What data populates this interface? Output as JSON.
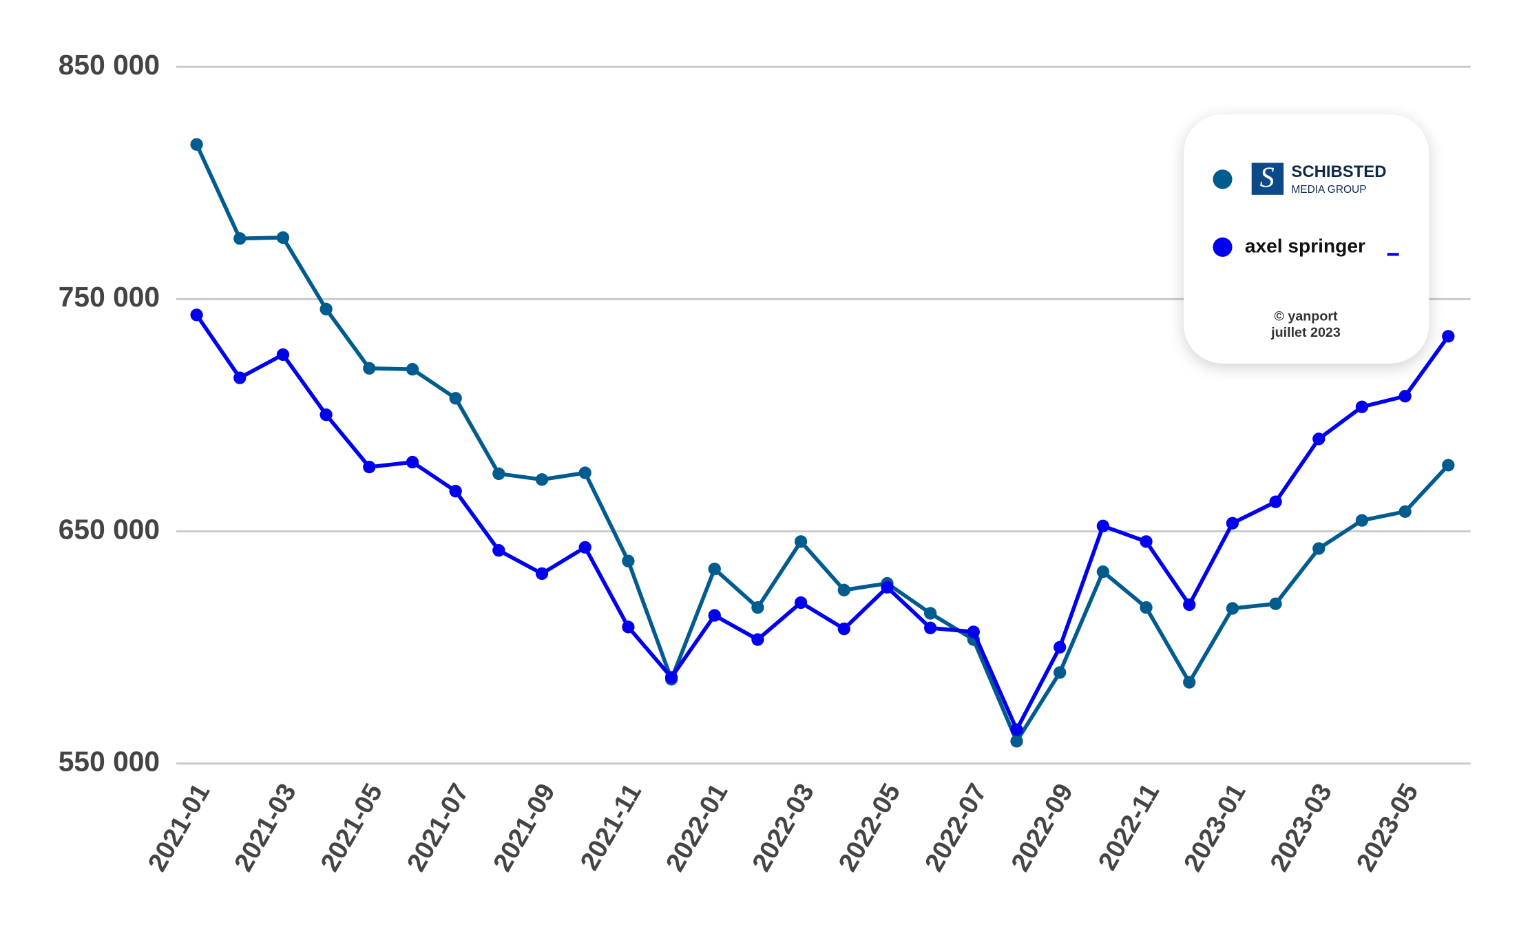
{
  "chart_data": {
    "type": "line",
    "categories": [
      "2021-01",
      null,
      "2021-03",
      null,
      "2021-05",
      null,
      "2021-07",
      null,
      "2021-09",
      null,
      "2021-11",
      null,
      "2022-01",
      null,
      "2022-03",
      null,
      "2022-05",
      null,
      "2022-07",
      null,
      "2022-09",
      null,
      "2022-11",
      null,
      "2023-01",
      null,
      "2023-03",
      null,
      "2023-05",
      null
    ],
    "series": [
      {
        "name": "SCHIBSTED",
        "color": "#005b8f",
        "values": [
          816600,
          776100,
          776500,
          745700,
          720200,
          719800,
          707300,
          674800,
          672300,
          675200,
          637200,
          586300,
          633800,
          617200,
          645600,
          624700,
          627600,
          614700,
          603400,
          559600,
          589200,
          632600,
          617200,
          585000,
          616800,
          618800,
          642600,
          654700,
          658500,
          678500
        ]
      },
      {
        "name": "axel springer",
        "color": "#0000ee",
        "values": [
          743200,
          716100,
          726100,
          700200,
          677700,
          679800,
          667300,
          641800,
          631800,
          643100,
          608800,
          587100,
          613800,
          603400,
          619300,
          608000,
          625900,
          608400,
          606700,
          564600,
          600100,
          652300,
          645600,
          618400,
          653500,
          662700,
          689800,
          703600,
          708200,
          734000
        ]
      }
    ],
    "logo_subtitle": "MEDIA GROUP",
    "credit": [
      "© yanport",
      "juillet 2023"
    ],
    "ylim": [
      550000,
      850000
    ],
    "yticks": [
      {
        "value": 550000,
        "label": "550 000"
      },
      {
        "value": 650000,
        "label": "650 000"
      },
      {
        "value": 750000,
        "label": "750 000"
      },
      {
        "value": 850000,
        "label": "850 000"
      }
    ],
    "grid": true,
    "legend": "top-right"
  }
}
